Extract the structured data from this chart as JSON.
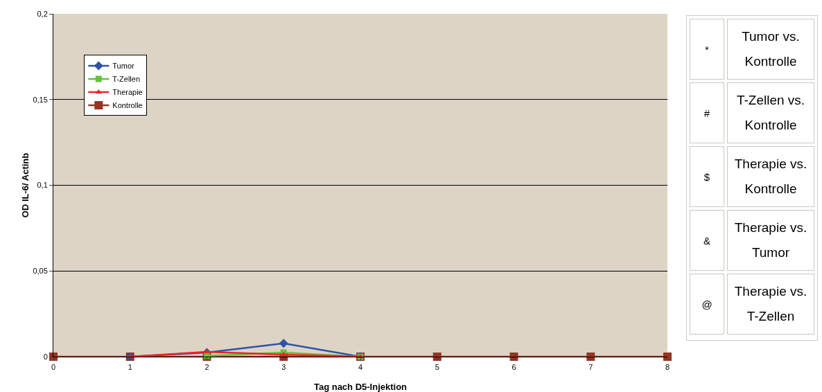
{
  "chart_data": {
    "type": "line",
    "xlabel": "Tag nach D5-Injektion",
    "ylabel": "OD IL-6/ Actinb",
    "x": [
      0,
      1,
      2,
      3,
      4,
      5,
      6,
      7,
      8
    ],
    "series": [
      {
        "name": "Tumor",
        "color": "#2f52a8",
        "marker": "diamond",
        "values": [
          null,
          0,
          0.0024,
          0.0078,
          0,
          null,
          null,
          null,
          null
        ]
      },
      {
        "name": "T-Zellen",
        "color": "#66c040",
        "marker": "square",
        "values": [
          null,
          null,
          0.0005,
          0.0024,
          0,
          null,
          null,
          null,
          null
        ]
      },
      {
        "name": "Therapie",
        "color": "#ee2222",
        "marker": "triangle",
        "values": [
          null,
          0,
          0.0028,
          0.0012,
          0,
          null,
          null,
          null,
          null
        ]
      },
      {
        "name": "Kontrolle",
        "color": "#993322",
        "marker": "square",
        "values": [
          0,
          0,
          0,
          0,
          0,
          0,
          0,
          0,
          0
        ]
      }
    ],
    "xlim": [
      0,
      8
    ],
    "xticks": [
      0,
      1,
      2,
      3,
      4,
      5,
      6,
      7,
      8
    ],
    "ylim": [
      0,
      0.2
    ],
    "yticks": [
      0,
      {
        "value": 0.05,
        "label": "0,05"
      },
      {
        "value": 0.1,
        "label": "0,1"
      },
      {
        "value": 0.15,
        "label": "0,15"
      },
      {
        "value": 0.2,
        "label": "0,2"
      }
    ],
    "grid": "y",
    "legend": "top left",
    "annotations": [
      "*",
      "Tumor vs. Kontrolle",
      "#",
      "T-Zellen vs. Kontrolle",
      "$",
      "Therapie vs. Kontrolle",
      "&",
      "Therapie vs. Tumor",
      "@",
      "Therapie vs. T-Zellen"
    ]
  }
}
